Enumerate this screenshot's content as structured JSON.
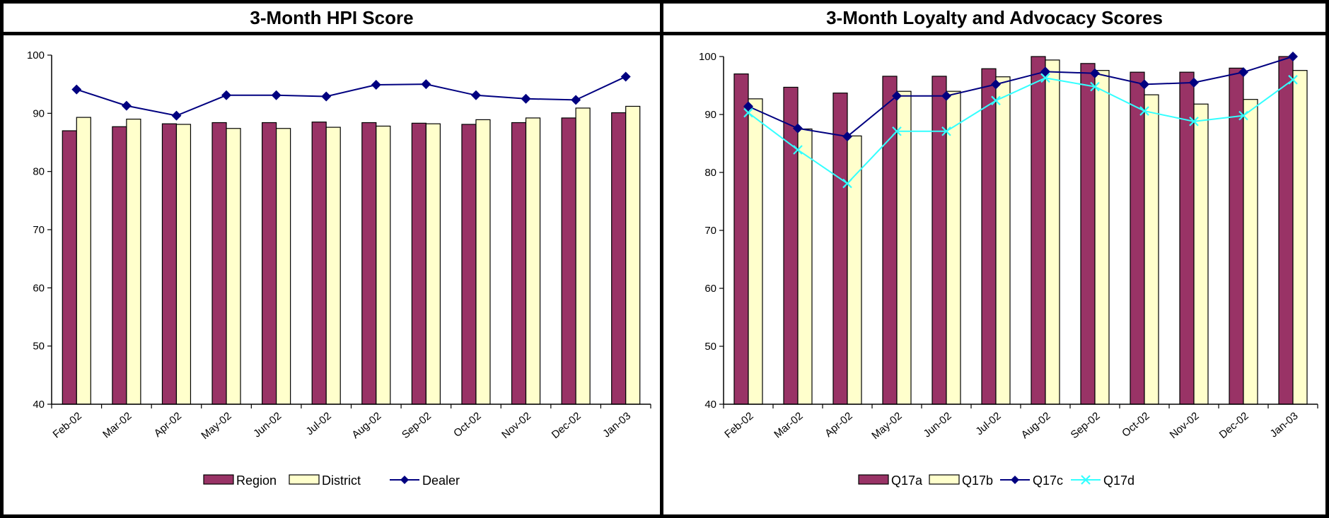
{
  "colors": {
    "bar1": "#993366",
    "bar2": "#ffffcc",
    "line1": "#000080",
    "line2": "#33ffff"
  },
  "chart_data": [
    {
      "type": "bar",
      "title": "3-Month HPI Score",
      "categories": [
        "Feb-02",
        "Mar-02",
        "Apr-02",
        "May-02",
        "Jun-02",
        "Jul-02",
        "Aug-02",
        "Sep-02",
        "Oct-02",
        "Nov-02",
        "Dec-02",
        "Jan-03"
      ],
      "ylim": [
        40,
        100
      ],
      "yticks": [
        "40",
        "50",
        "60",
        "70",
        "80",
        "90",
        "100"
      ],
      "legend_position": "bottom",
      "series": [
        {
          "name": "Region",
          "kind": "bar",
          "values": [
            87.0,
            87.7,
            88.2,
            88.4,
            88.4,
            88.5,
            88.4,
            88.3,
            88.1,
            88.4,
            89.2,
            90.1
          ]
        },
        {
          "name": "District",
          "kind": "bar",
          "values": [
            89.3,
            89.0,
            88.1,
            87.4,
            87.4,
            87.6,
            87.8,
            88.2,
            88.9,
            89.2,
            90.9,
            91.2
          ]
        },
        {
          "name": "Dealer",
          "kind": "line",
          "marker": "diamond",
          "values": [
            94.1,
            91.3,
            89.6,
            93.1,
            93.1,
            92.9,
            94.9,
            95.0,
            93.1,
            92.5,
            92.3,
            96.3
          ]
        }
      ]
    },
    {
      "type": "bar",
      "title": "3-Month Loyalty and Advocacy Scores",
      "categories": [
        "Feb-02",
        "Mar-02",
        "Apr-02",
        "May-02",
        "Jun-02",
        "Jul-02",
        "Aug-02",
        "Sep-02",
        "Oct-02",
        "Nov-02",
        "Dec-02",
        "Jan-03"
      ],
      "ylim": [
        40,
        100
      ],
      "yticks": [
        "40",
        "50",
        "60",
        "70",
        "80",
        "90",
        "100"
      ],
      "legend_position": "bottom",
      "series": [
        {
          "name": "Q17a",
          "kind": "bar",
          "values": [
            97.0,
            94.7,
            93.7,
            96.6,
            96.6,
            97.9,
            100.0,
            98.8,
            97.3,
            97.3,
            98.0,
            100.0
          ]
        },
        {
          "name": "Q17b",
          "kind": "bar",
          "values": [
            92.7,
            87.5,
            86.3,
            94.0,
            94.0,
            96.5,
            99.4,
            97.6,
            93.4,
            91.8,
            92.6,
            97.6
          ]
        },
        {
          "name": "Q17c",
          "kind": "line",
          "marker": "diamond",
          "values": [
            91.4,
            87.6,
            86.2,
            93.2,
            93.2,
            95.2,
            97.4,
            97.1,
            95.2,
            95.5,
            97.3,
            100.0
          ]
        },
        {
          "name": "Q17d",
          "kind": "line",
          "marker": "x",
          "values": [
            90.3,
            83.9,
            78.1,
            87.1,
            87.1,
            92.4,
            96.3,
            94.8,
            90.6,
            88.8,
            89.8,
            96.0
          ]
        }
      ]
    }
  ]
}
